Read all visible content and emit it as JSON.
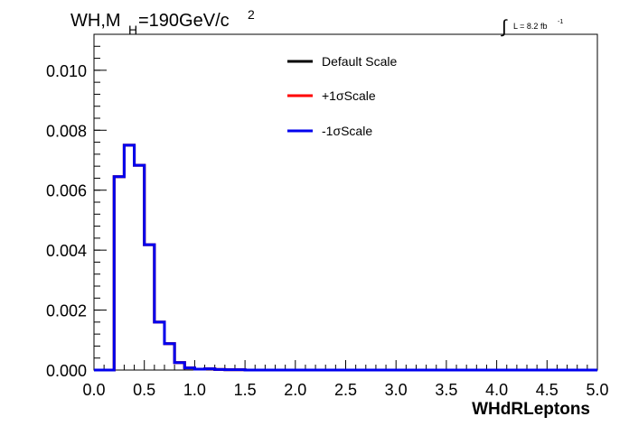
{
  "chart_data": {
    "type": "line",
    "title": {
      "main": "WH,M",
      "sub": "H",
      "rest": "=190GeV/c",
      "sup": "2"
    },
    "lumi": {
      "integral": "∫",
      "text": "L = 8.2 fb",
      "sup": "-1"
    },
    "xlabel": "WHdRLeptons",
    "ylabel": "",
    "xlim": [
      0.0,
      5.0
    ],
    "ylim": [
      0.0,
      0.0112
    ],
    "x_ticks": [
      "0.0",
      "0.5",
      "1.0",
      "1.5",
      "2.0",
      "2.5",
      "3.0",
      "3.5",
      "4.0",
      "4.5",
      "5.0"
    ],
    "y_ticks": [
      "0.000",
      "0.002",
      "0.004",
      "0.006",
      "0.008",
      "0.010"
    ],
    "bin_width": 0.1,
    "bin_start": 0.0,
    "series": [
      {
        "name": "Default Scale",
        "color": "#000000",
        "values": [
          0,
          0,
          0.00645,
          0.0075,
          0.00683,
          0.00418,
          0.0016,
          0.00088,
          0.00025,
          7e-05,
          3e-05,
          4e-05,
          2e-05,
          1e-05,
          1e-05,
          0,
          0,
          0,
          0,
          0,
          0,
          0,
          0,
          0,
          0,
          0,
          0,
          0,
          0,
          0,
          0,
          0,
          0,
          0,
          0,
          0,
          0,
          0,
          0,
          0,
          0,
          0,
          0,
          0,
          0,
          0,
          0,
          0,
          0,
          0
        ]
      },
      {
        "name": "+1σScale",
        "color": "#ff0000",
        "values": [
          0,
          0,
          0.00645,
          0.0075,
          0.00683,
          0.00418,
          0.0016,
          0.00088,
          0.00025,
          7e-05,
          3e-05,
          4e-05,
          2e-05,
          1e-05,
          1e-05,
          0,
          0,
          0,
          0,
          0,
          0,
          0,
          0,
          0,
          0,
          0,
          0,
          0,
          0,
          0,
          0,
          0,
          0,
          0,
          0,
          0,
          0,
          0,
          0,
          0,
          0,
          0,
          0,
          0,
          0,
          0,
          0,
          0,
          0,
          0
        ]
      },
      {
        "name": "-1σScale",
        "color": "#0000ee",
        "values": [
          0,
          0,
          0.00645,
          0.0075,
          0.00683,
          0.00418,
          0.0016,
          0.00088,
          0.00025,
          7e-05,
          3e-05,
          4e-05,
          2e-05,
          1e-05,
          1e-05,
          0,
          0,
          0,
          0,
          0,
          0,
          0,
          0,
          0,
          0,
          0,
          0,
          0,
          0,
          0,
          0,
          0,
          0,
          0,
          0,
          0,
          0,
          0,
          0,
          0,
          0,
          0,
          0,
          0,
          0,
          0,
          0,
          0,
          0,
          0
        ]
      }
    ],
    "legend_position": "top-center",
    "grid": false
  }
}
